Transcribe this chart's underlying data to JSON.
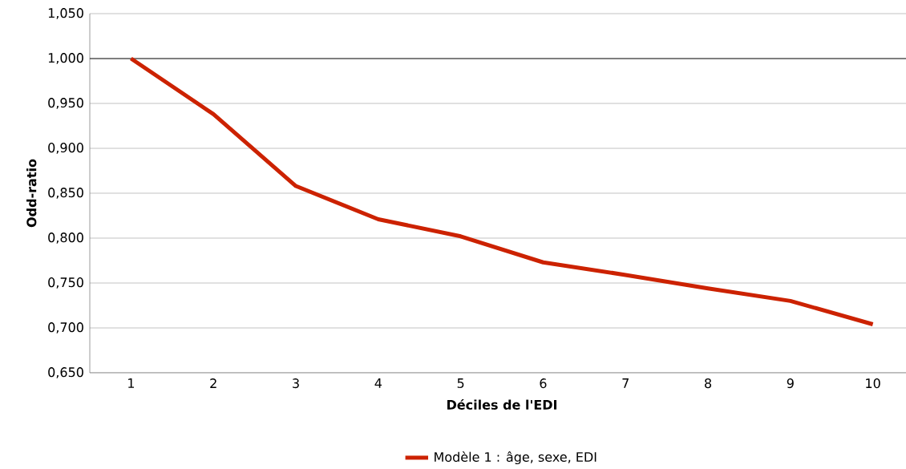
{
  "chart_data": {
    "type": "line",
    "xlabel": "Déciles de l'EDI",
    "ylabel": "Odd-ratio",
    "categories": [
      "1",
      "2",
      "3",
      "4",
      "5",
      "6",
      "7",
      "8",
      "9",
      "10"
    ],
    "series": [
      {
        "name": "Modèle 1 : âge, sexe, EDI",
        "color": "#cc2200",
        "values": [
          1.0,
          0.938,
          0.858,
          0.821,
          0.802,
          0.773,
          0.759,
          0.744,
          0.73,
          0.704
        ]
      }
    ],
    "ylim": [
      0.65,
      1.05
    ],
    "yticks": [
      {
        "value": 0.65,
        "label": "0,650"
      },
      {
        "value": 0.7,
        "label": "0,700"
      },
      {
        "value": 0.75,
        "label": "0,750"
      },
      {
        "value": 0.8,
        "label": "0,800"
      },
      {
        "value": 0.85,
        "label": "0,850"
      },
      {
        "value": 0.9,
        "label": "0,900"
      },
      {
        "value": 0.95,
        "label": "0,950"
      },
      {
        "value": 1.0,
        "label": "1,000"
      },
      {
        "value": 1.05,
        "label": "1,050"
      }
    ],
    "ref_lines": [
      {
        "axis": "y",
        "value": 1.0,
        "color": "#000000"
      }
    ],
    "grid": "y",
    "legend": "bottom",
    "marker": "none",
    "line_style": "solid"
  }
}
